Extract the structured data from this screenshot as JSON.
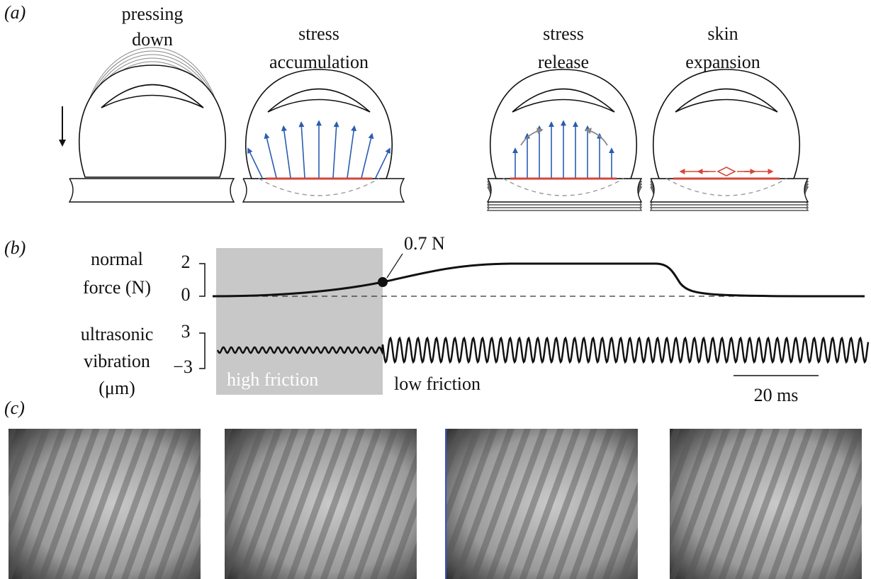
{
  "panel_a": {
    "label": "(a)",
    "steps": [
      {
        "caption": [
          "pressing",
          "down"
        ]
      },
      {
        "caption": [
          "stress",
          "accumulation"
        ]
      },
      {
        "caption": [
          "stress",
          "release"
        ]
      },
      {
        "caption": [
          "skin",
          "expansion"
        ]
      }
    ]
  },
  "panel_b": {
    "label": "(b)",
    "force_axis": {
      "label": [
        "normal",
        "force (N)"
      ],
      "ticks": [
        "2",
        "0"
      ]
    },
    "annotation": "0.7 N",
    "vibration_axis": {
      "label": [
        "ultrasonic",
        "vibration",
        "(μm)"
      ],
      "ticks": [
        "3",
        "−3"
      ]
    },
    "regions": [
      "high friction",
      "low friction"
    ],
    "scale_bar": "20 ms"
  },
  "panel_c": {
    "label": "(c)"
  }
}
